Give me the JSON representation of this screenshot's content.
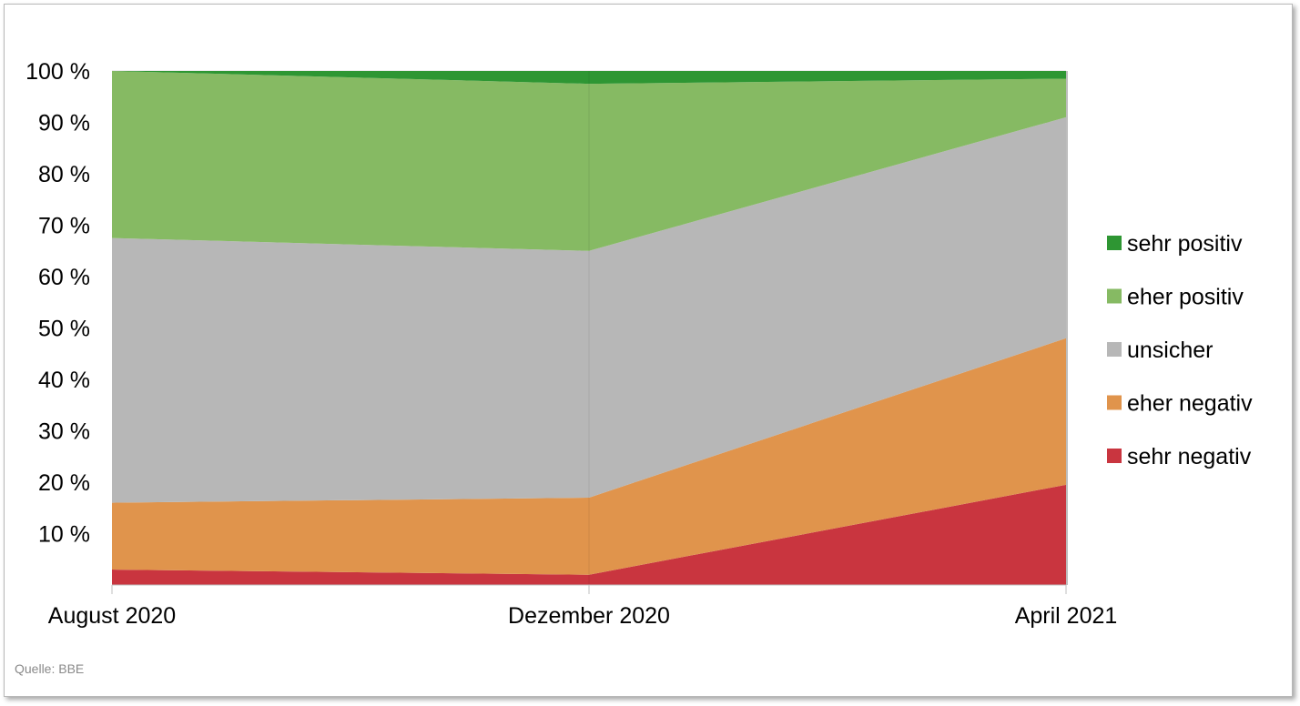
{
  "chart_data": {
    "type": "area",
    "stacked": true,
    "categories": [
      "August 2020",
      "Dezember 2020",
      "April 2021"
    ],
    "series": [
      {
        "name": "sehr negativ",
        "color": "#c9353f",
        "values": [
          3,
          2,
          19.5
        ]
      },
      {
        "name": "eher negativ",
        "color": "#e0944c",
        "values": [
          13,
          15,
          28.5
        ]
      },
      {
        "name": "unsicher",
        "color": "#b7b7b7",
        "values": [
          51.5,
          48,
          43
        ]
      },
      {
        "name": "eher positiv",
        "color": "#86ba63",
        "values": [
          32.5,
          32.5,
          7.5
        ]
      },
      {
        "name": "sehr positiv",
        "color": "#2e9633",
        "values": [
          0,
          2.5,
          1.5
        ]
      }
    ],
    "y_ticks": [
      "10 %",
      "20 %",
      "30 %",
      "40 %",
      "50 %",
      "60 %",
      "70 %",
      "80 %",
      "90 %",
      "100 %"
    ],
    "ylim": [
      0,
      100
    ],
    "grid": true,
    "legend": "right",
    "legend_order": [
      "sehr positiv",
      "eher positiv",
      "unsicher",
      "eher negativ",
      "sehr negativ"
    ]
  },
  "source": "Quelle:  BBE"
}
